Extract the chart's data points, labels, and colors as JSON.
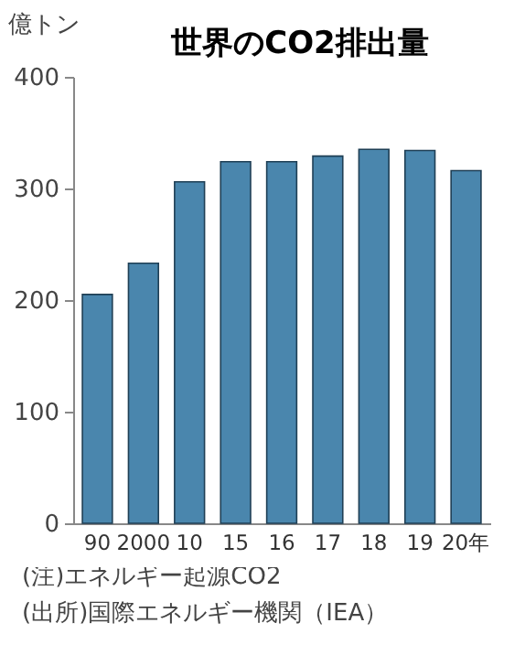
{
  "chart_data": {
    "type": "bar",
    "title": "世界のCO2排出量",
    "ylabel": "億トン",
    "categories": [
      "90",
      "2000",
      "10",
      "15",
      "16",
      "17",
      "18",
      "19",
      "20年"
    ],
    "values": [
      205,
      233,
      306,
      324,
      324,
      329,
      335,
      334,
      316
    ],
    "color": "#4a86ad",
    "ylim": [
      0,
      400
    ],
    "yticks": [
      0,
      100,
      200,
      300,
      400
    ],
    "grid": false,
    "annotations": [
      "(注)エネルギー起源CO2",
      "(出所)国際エネルギー機関（IEA）"
    ]
  }
}
